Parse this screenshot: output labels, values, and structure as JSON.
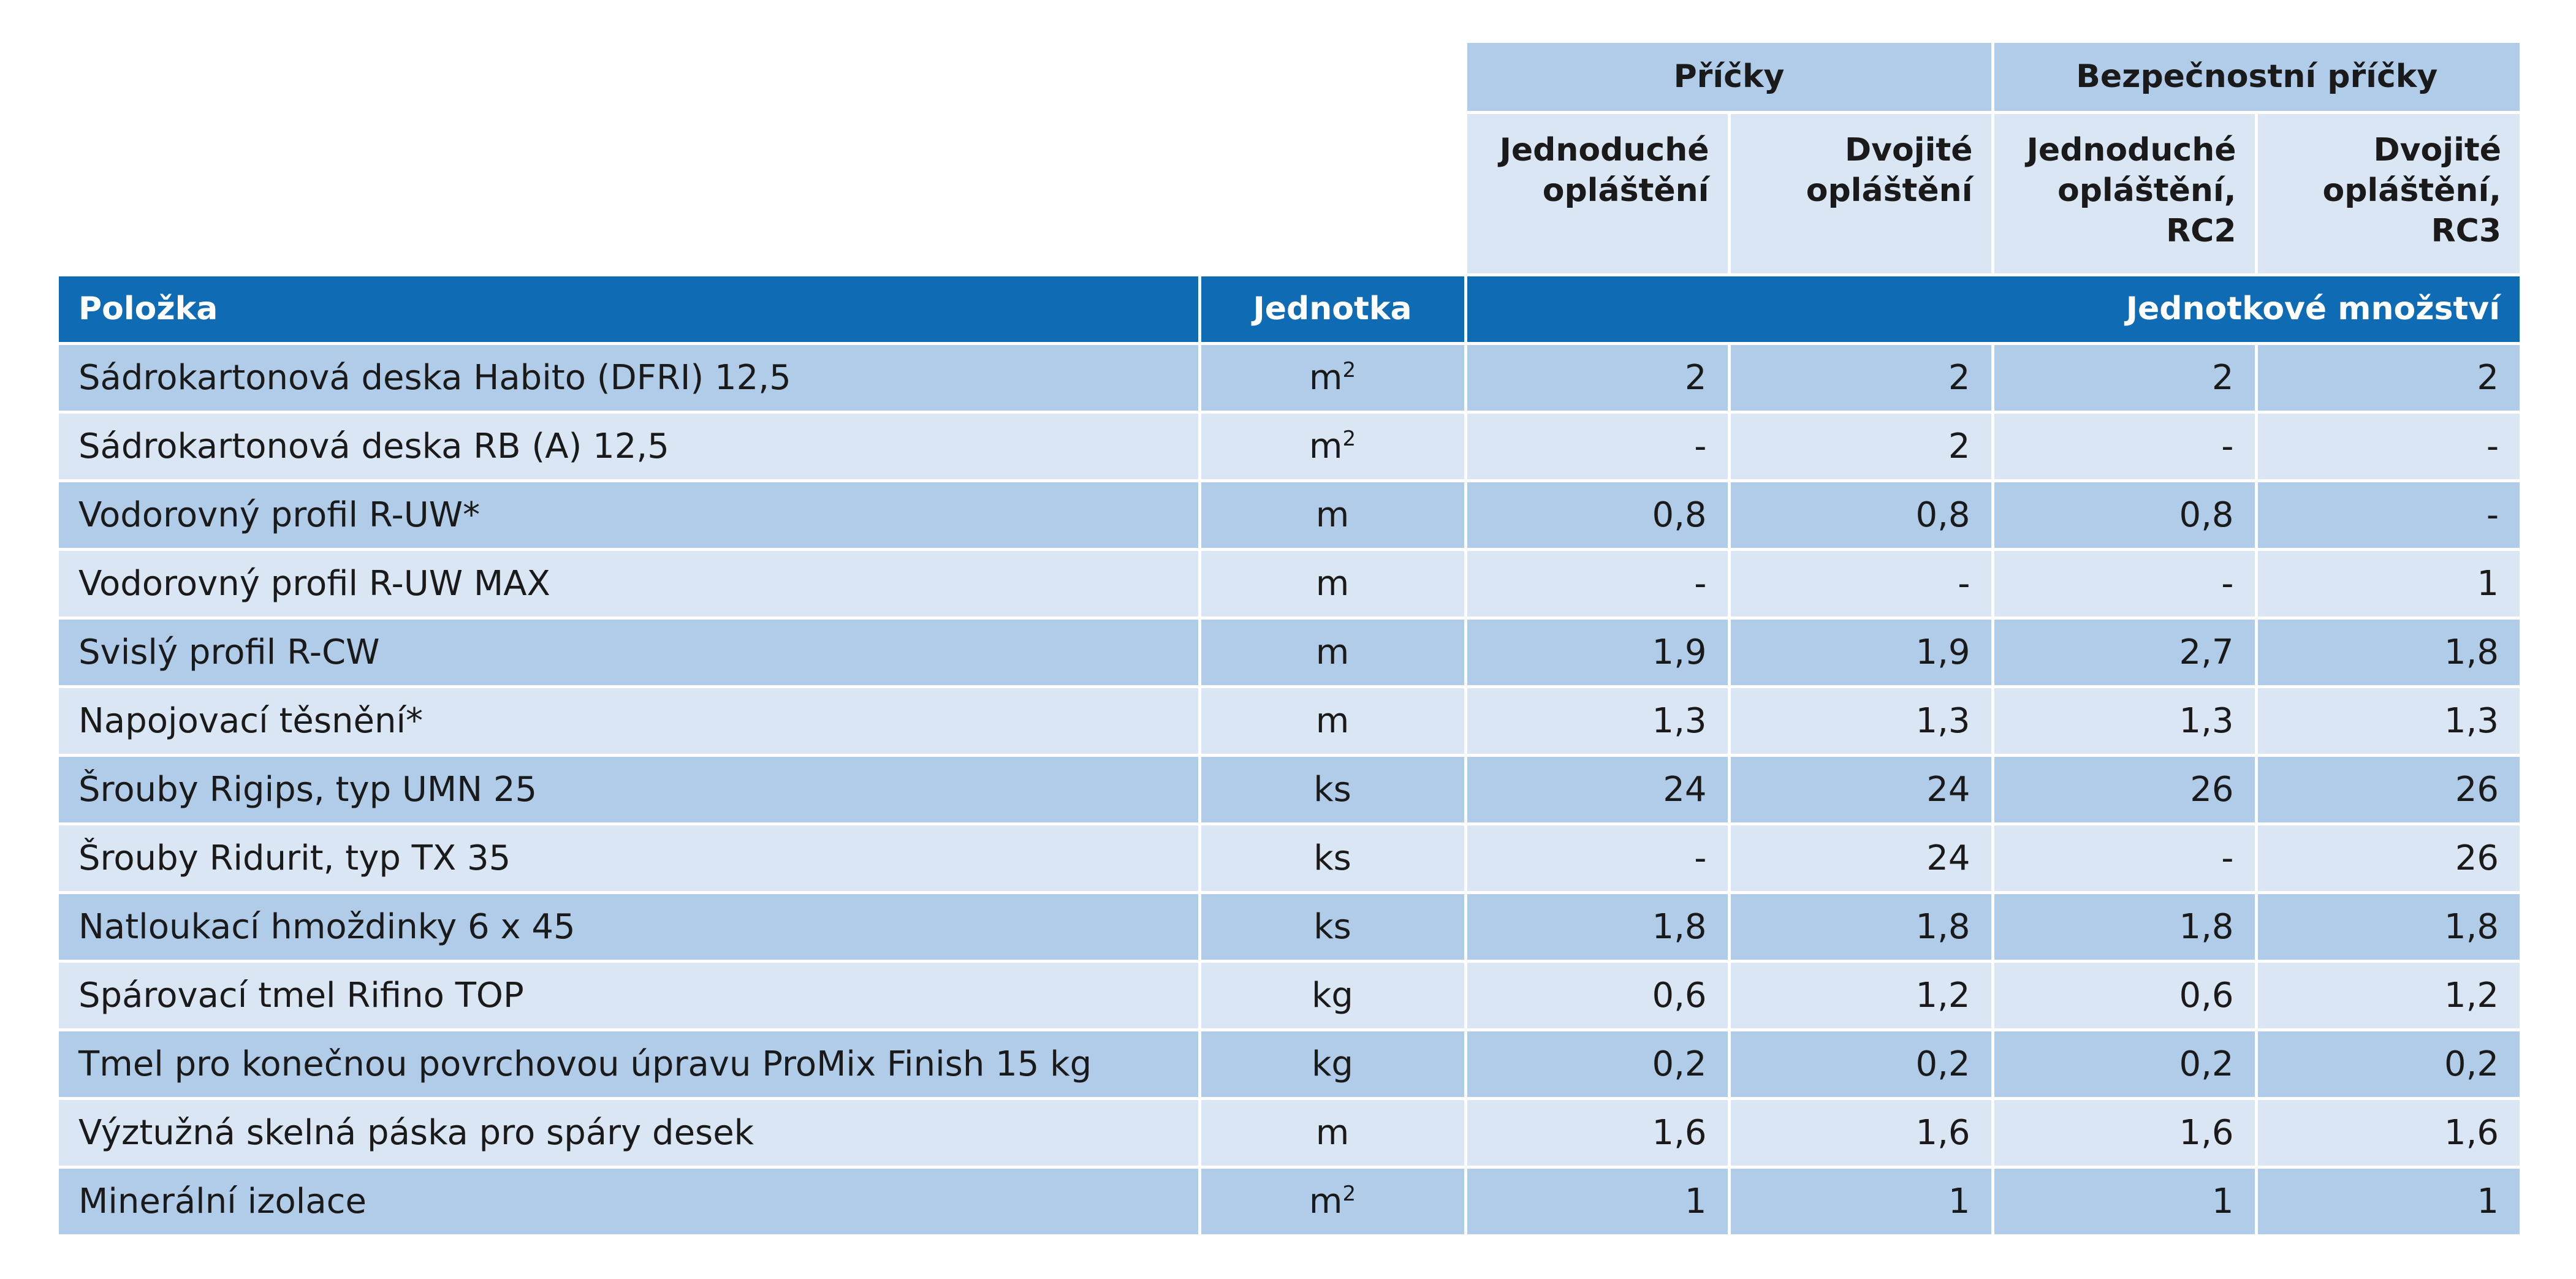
{
  "groups": {
    "pricky": "Příčky",
    "bezpecnostni": "Bezpečnostní příčky"
  },
  "subheaders": [
    "Jednoduché opláštění",
    "Dvojité opláštění",
    "Jednoduché opláštění, RC2",
    "Dvojité opláštění, RC3"
  ],
  "columns": {
    "item": "Položka",
    "unit": "Jednotka",
    "quantity": "Jednotkové množství"
  },
  "rows": [
    {
      "item": "Sádrokartonová deska Habito (DFRI) 12,5",
      "unit": "m",
      "unit_sup": "2",
      "values": [
        "2",
        "2",
        "2",
        "2"
      ]
    },
    {
      "item": "Sádrokartonová deska RB (A) 12,5",
      "unit": "m",
      "unit_sup": "2",
      "values": [
        "-",
        "2",
        "-",
        "-"
      ]
    },
    {
      "item": "Vodorovný profil R-UW*",
      "unit": "m",
      "unit_sup": "",
      "values": [
        "0,8",
        "0,8",
        "0,8",
        "-"
      ]
    },
    {
      "item": "Vodorovný profil R-UW MAX",
      "unit": "m",
      "unit_sup": "",
      "values": [
        "-",
        "-",
        "-",
        "1"
      ]
    },
    {
      "item": "Svislý profil R-CW",
      "unit": "m",
      "unit_sup": "",
      "values": [
        "1,9",
        "1,9",
        "2,7",
        "1,8"
      ]
    },
    {
      "item": "Napojovací těsnění*",
      "unit": "m",
      "unit_sup": "",
      "values": [
        "1,3",
        "1,3",
        "1,3",
        "1,3"
      ]
    },
    {
      "item": "Šrouby Rigips, typ UMN 25",
      "unit": "ks",
      "unit_sup": "",
      "values": [
        "24",
        "24",
        "26",
        "26"
      ]
    },
    {
      "item": "Šrouby Ridurit, typ TX 35",
      "unit": "ks",
      "unit_sup": "",
      "values": [
        "-",
        "24",
        "-",
        "26"
      ]
    },
    {
      "item": "Natloukací hmoždinky 6 x 45",
      "unit": "ks",
      "unit_sup": "",
      "values": [
        "1,8",
        "1,8",
        "1,8",
        "1,8"
      ]
    },
    {
      "item": "Spárovací tmel Rifino TOP",
      "unit": "kg",
      "unit_sup": "",
      "values": [
        "0,6",
        "1,2",
        "0,6",
        "1,2"
      ]
    },
    {
      "item": "Tmel pro konečnou povrchovou úpravu ProMix Finish 15 kg",
      "unit": "kg",
      "unit_sup": "",
      "values": [
        "0,2",
        "0,2",
        "0,2",
        "0,2"
      ]
    },
    {
      "item": "Výztužná skelná páska pro spáry desek",
      "unit": "m",
      "unit_sup": "",
      "values": [
        "1,6",
        "1,6",
        "1,6",
        "1,6"
      ]
    },
    {
      "item": "Minerální izolace",
      "unit": "m",
      "unit_sup": "2",
      "values": [
        "1",
        "1",
        "1",
        "1"
      ]
    }
  ],
  "colors": {
    "header_blue": "#0f6cb4",
    "row_dark": "#b1cce9",
    "row_light": "#dbe6f4"
  }
}
